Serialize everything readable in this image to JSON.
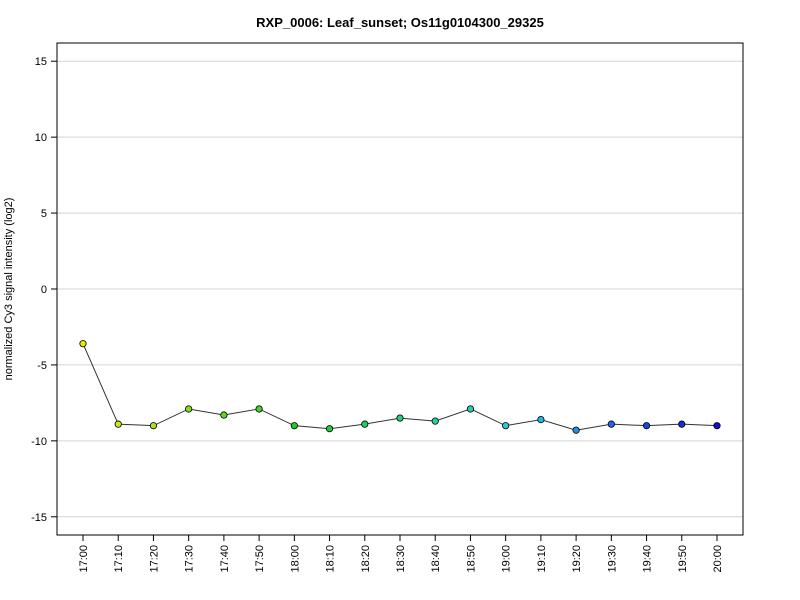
{
  "chart_data": {
    "type": "line",
    "title": "RXP_0006: Leaf_sunset; Os11g0104300_29325",
    "xlabel": "",
    "ylabel": "normalized Cy3 signal intensity (log2)",
    "ylim": [
      -16.2,
      16.2
    ],
    "yticks": [
      -15,
      -10,
      -5,
      0,
      5,
      10,
      15
    ],
    "grid": true,
    "categories": [
      "17:00",
      "17:10",
      "17:20",
      "17:30",
      "17:40",
      "17:50",
      "18:00",
      "18:10",
      "18:20",
      "18:30",
      "18:40",
      "18:50",
      "19:00",
      "19:10",
      "19:20",
      "19:30",
      "19:40",
      "19:50",
      "20:00"
    ],
    "series": [
      {
        "values": [
          -3.6,
          -8.9,
          -9.0,
          -7.9,
          -8.3,
          -7.9,
          -9.0,
          -9.2,
          -8.9,
          -8.5,
          -8.7,
          -7.9,
          -9.0,
          -8.6,
          -9.3,
          -8.9,
          -9.0,
          -8.9,
          -9.0
        ],
        "point_colors": [
          "#e8e800",
          "#cde61a",
          "#a6e31f",
          "#7fe01f",
          "#5ad923",
          "#3ed42a",
          "#22cc22",
          "#1fcc3c",
          "#1fce5e",
          "#1fd07e",
          "#20d19c",
          "#20d0b6",
          "#22cfcf",
          "#1fb8e0",
          "#2090e6",
          "#1f68e6",
          "#1c45e0",
          "#1a2bd8",
          "#1111cc"
        ]
      }
    ]
  }
}
